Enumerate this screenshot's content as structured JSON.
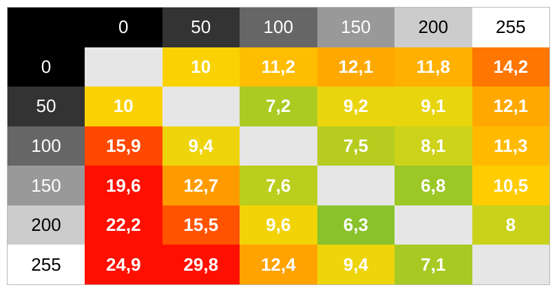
{
  "chart_data": {
    "type": "heatmap",
    "x": [
      "0",
      "50",
      "100",
      "150",
      "200",
      "255"
    ],
    "y": [
      "0",
      "50",
      "100",
      "150",
      "200",
      "255"
    ],
    "values": [
      [
        null,
        "10",
        "11,2",
        "12,1",
        "11,8",
        "14,2"
      ],
      [
        "10",
        null,
        "7,2",
        "9,2",
        "9,1",
        "12,1"
      ],
      [
        "15,9",
        "9,4",
        null,
        "7,5",
        "8,1",
        "11,3"
      ],
      [
        "19,6",
        "12,7",
        "7,6",
        null,
        "6,8",
        "10,5"
      ],
      [
        "22,2",
        "15,5",
        "9,6",
        "6,3",
        null,
        "8"
      ],
      [
        "24,9",
        "29,8",
        "12,4",
        "9,4",
        "7,1",
        null
      ]
    ],
    "colors": {
      "header_backgrounds": [
        "#000000",
        "#333333",
        "#666666",
        "#999999",
        "#cccccc",
        "#ffffff"
      ],
      "header_text": [
        "#ffffff",
        "#ffffff",
        "#ffffff",
        "#ffffff",
        "#000000",
        "#000000"
      ],
      "diagonal": "#e6e6e6",
      "scale_stops": [
        {
          "value": 6.3,
          "color": "#89c22a"
        },
        {
          "value": 8.5,
          "color": "#dcd616"
        },
        {
          "value": 10.2,
          "color": "#fed200"
        },
        {
          "value": 12.3,
          "color": "#ffa500"
        },
        {
          "value": 14.5,
          "color": "#ff6e00"
        },
        {
          "value": 18.0,
          "color": "#ff0f00"
        }
      ]
    }
  }
}
